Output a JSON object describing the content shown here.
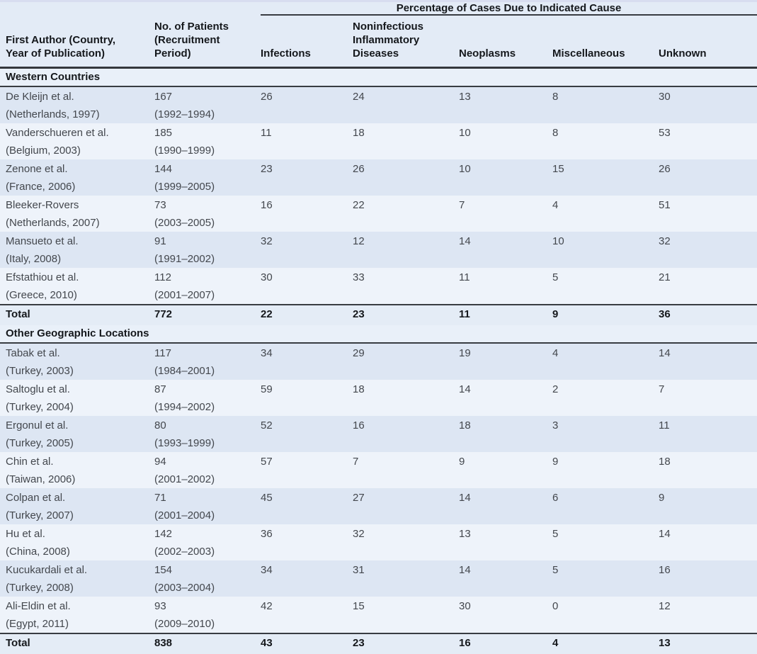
{
  "header": {
    "spanner": "Percentage of Cases Due to Indicated Cause",
    "col_author": "First Author (Country,\nYear of Publication)",
    "col_patients": "No. of Patients\n(Recruitment\nPeriod)",
    "cause_columns": [
      "Infections",
      "Noninfectious\nInflammatory\nDiseases",
      "Neoplasms",
      "Miscellaneous",
      "Unknown"
    ]
  },
  "sections": [
    {
      "title": "Western Countries",
      "rows": [
        {
          "author": "De Kleijn et al.",
          "location": "(Netherlands, 1997)",
          "patients": "167",
          "period": "(1992–1994)",
          "values": [
            "26",
            "24",
            "13",
            "8",
            "30"
          ]
        },
        {
          "author": "Vanderschueren et al.",
          "location": "(Belgium, 2003)",
          "patients": "185",
          "period": "(1990–1999)",
          "values": [
            "11",
            "18",
            "10",
            "8",
            "53"
          ]
        },
        {
          "author": "Zenone et al.",
          "location": "(France, 2006)",
          "patients": "144",
          "period": "(1999–2005)",
          "values": [
            "23",
            "26",
            "10",
            "15",
            "26"
          ]
        },
        {
          "author": "Bleeker-Rovers",
          "location": "(Netherlands, 2007)",
          "patients": "73",
          "period": "(2003–2005)",
          "values": [
            "16",
            "22",
            "7",
            "4",
            "51"
          ]
        },
        {
          "author": "Mansueto et al.",
          "location": "(Italy, 2008)",
          "patients": "91",
          "period": "(1991–2002)",
          "values": [
            "32",
            "12",
            "14",
            "10",
            "32"
          ]
        },
        {
          "author": "Efstathiou et al.",
          "location": "(Greece, 2010)",
          "patients": "112",
          "period": "(2001–2007)",
          "values": [
            "30",
            "33",
            "11",
            "5",
            "21"
          ]
        }
      ],
      "total": {
        "label": "Total",
        "patients": "772",
        "values": [
          "22",
          "23",
          "11",
          "9",
          "36"
        ]
      }
    },
    {
      "title": "Other Geographic Locations",
      "rows": [
        {
          "author": "Tabak et al.",
          "location": "(Turkey, 2003)",
          "patients": "117",
          "period": "(1984–2001)",
          "values": [
            "34",
            "29",
            "19",
            "4",
            "14"
          ]
        },
        {
          "author": "Saltoglu et al.",
          "location": "(Turkey, 2004)",
          "patients": "87",
          "period": "(1994–2002)",
          "values": [
            "59",
            "18",
            "14",
            "2",
            "7"
          ]
        },
        {
          "author": "Ergonul et al.",
          "location": "(Turkey, 2005)",
          "patients": "80",
          "period": "(1993–1999)",
          "values": [
            "52",
            "16",
            "18",
            "3",
            "11"
          ]
        },
        {
          "author": "Chin et al.",
          "location": "(Taiwan, 2006)",
          "patients": "94",
          "period": "(2001–2002)",
          "values": [
            "57",
            "7",
            "9",
            "9",
            "18"
          ]
        },
        {
          "author": "Colpan et al.",
          "location": "(Turkey, 2007)",
          "patients": "71",
          "period": "(2001–2004)",
          "values": [
            "45",
            "27",
            "14",
            "6",
            "9"
          ]
        },
        {
          "author": "Hu et al.",
          "location": "(China, 2008)",
          "patients": "142",
          "period": "(2002–2003)",
          "values": [
            "36",
            "32",
            "13",
            "5",
            "14"
          ]
        },
        {
          "author": "Kucukardali et al.",
          "location": "(Turkey, 2008)",
          "patients": "154",
          "period": "(2003–2004)",
          "values": [
            "34",
            "31",
            "14",
            "5",
            "16"
          ]
        },
        {
          "author": "Ali-Eldin et al.",
          "location": "(Egypt, 2011)",
          "patients": "93",
          "period": "(2009–2010)",
          "values": [
            "42",
            "15",
            "30",
            "0",
            "12"
          ]
        }
      ],
      "total": {
        "label": "Total",
        "patients": "838",
        "values": [
          "43",
          "23",
          "16",
          "4",
          "13"
        ]
      }
    }
  ],
  "colors": {
    "header_bg": "#e3ebf6",
    "stripe_dark": "#dde6f3",
    "stripe_light": "#eef3fa",
    "section_bg": "#e9f0f9",
    "total_bg": "#e4ecf6",
    "rule_dark": "#33373c",
    "top_strip": "#d8ddf0",
    "text_heading": "#15181c",
    "text_body": "#43474d"
  }
}
